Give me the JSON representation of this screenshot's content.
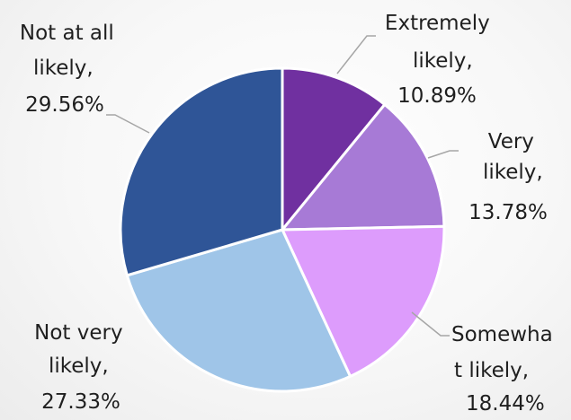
{
  "chart_data": {
    "type": "pie",
    "slices": [
      {
        "label_lines": [
          "Extremely",
          "likely,",
          "10.89%"
        ],
        "category": "Extremely likely",
        "value": 10.89,
        "color": "#7030a0"
      },
      {
        "label_lines": [
          "Very",
          "likely,",
          "13.78%"
        ],
        "category": "Very likely",
        "value": 13.78,
        "color": "#a77ad6"
      },
      {
        "label_lines": [
          "Somewha",
          "t likely,",
          "18.44%"
        ],
        "category": "Somewhat likely",
        "value": 18.44,
        "color": "#dd9cfc"
      },
      {
        "label_lines": [
          "Not very",
          "likely,",
          "27.33%"
        ],
        "category": "Not very likely",
        "value": 27.33,
        "color": "#9fc5e8"
      },
      {
        "label_lines": [
          "Not at all",
          "likely,",
          "29.56%"
        ],
        "category": "Not at all likely",
        "value": 29.56,
        "color": "#2f5597"
      }
    ],
    "start_angle_deg": 0,
    "direction": "clockwise",
    "legend": "none",
    "data_labels": "outside with leader lines"
  }
}
